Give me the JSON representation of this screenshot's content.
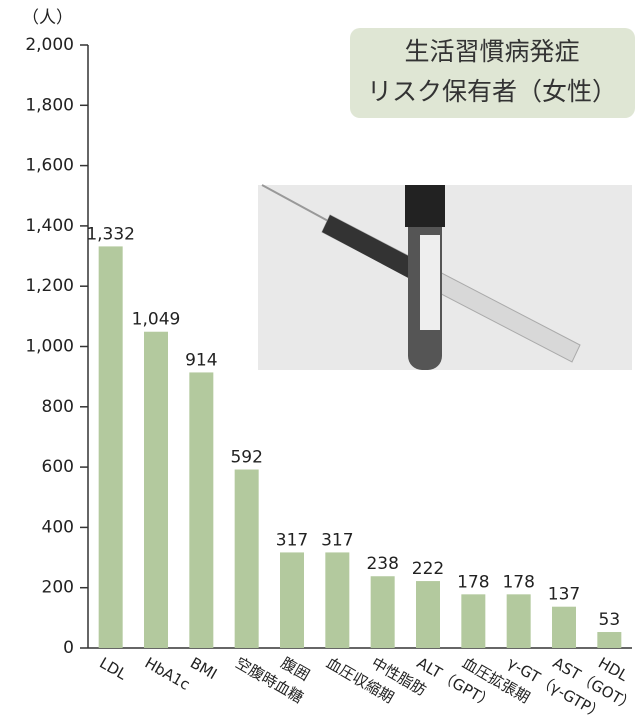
{
  "chart_data": {
    "type": "bar",
    "title": [
      "生活習慣病発症",
      "リスク保有者（女性）"
    ],
    "y_unit": "（人）",
    "categories": [
      "LDL",
      "HbA1c",
      "BMI",
      "空腹時血糖",
      "腹囲",
      "血圧収縮期",
      "中性脂肪",
      "ALT（GPT）",
      "血圧拡張期",
      "γ-GT（γ-GTP）",
      "AST（GOT）",
      "HDL"
    ],
    "values": [
      1332,
      1049,
      914,
      592,
      317,
      317,
      238,
      222,
      178,
      178,
      137,
      53
    ],
    "value_labels": [
      "1,332",
      "1,049",
      "914",
      "592",
      "317",
      "317",
      "238",
      "222",
      "178",
      "178",
      "137",
      "53"
    ],
    "color": "#b3c99e",
    "ylim": [
      0,
      2000
    ],
    "yticks": [
      0,
      200,
      400,
      600,
      800,
      {
        "value": 1000,
        "label": "1,000"
      },
      {
        "value": 1200,
        "label": "1,200"
      },
      {
        "value": 1400,
        "label": "1,400"
      },
      {
        "value": 1600,
        "label": "1,600"
      },
      {
        "value": 1800,
        "label": "1,800"
      },
      {
        "value": 2000,
        "label": "2,000"
      }
    ]
  }
}
